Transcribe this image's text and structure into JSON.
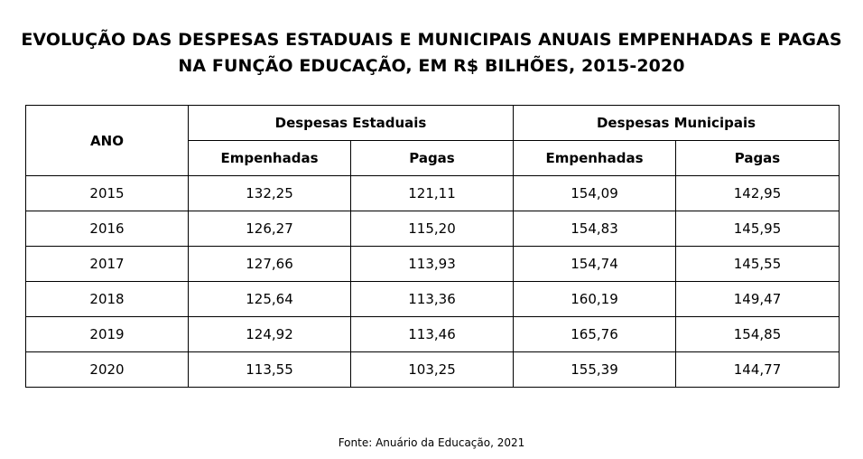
{
  "title": {
    "line1": "EVOLUÇÃO DAS DESPESAS ESTADUAIS E MUNICIPAIS ANUAIS EMPENHADAS E PAGAS",
    "line2": "NA FUNÇÃO EDUCAÇÃO, EM R$ BILHÕES, 2015-2020"
  },
  "table": {
    "header": {
      "ano": "ANO",
      "group_estaduais": "Despesas Estaduais",
      "group_municipais": "Despesas Municipais",
      "empenhadas": "Empenhadas",
      "pagas": "Pagas"
    },
    "rows": [
      {
        "ano": "2015",
        "est_emp": "132,25",
        "est_pag": "121,11",
        "mun_emp": "154,09",
        "mun_pag": "142,95"
      },
      {
        "ano": "2016",
        "est_emp": "126,27",
        "est_pag": "115,20",
        "mun_emp": "154,83",
        "mun_pag": "145,95"
      },
      {
        "ano": "2017",
        "est_emp": "127,66",
        "est_pag": "113,93",
        "mun_emp": "154,74",
        "mun_pag": "145,55"
      },
      {
        "ano": "2018",
        "est_emp": "125,64",
        "est_pag": "113,36",
        "mun_emp": "160,19",
        "mun_pag": "149,47"
      },
      {
        "ano": "2019",
        "est_emp": "124,92",
        "est_pag": "113,46",
        "mun_emp": "165,76",
        "mun_pag": "154,85"
      },
      {
        "ano": "2020",
        "est_emp": "113,55",
        "est_pag": "103,25",
        "mun_emp": "155,39",
        "mun_pag": "144,77"
      }
    ]
  },
  "source": "Fonte: Anuário da Educação, 2021"
}
